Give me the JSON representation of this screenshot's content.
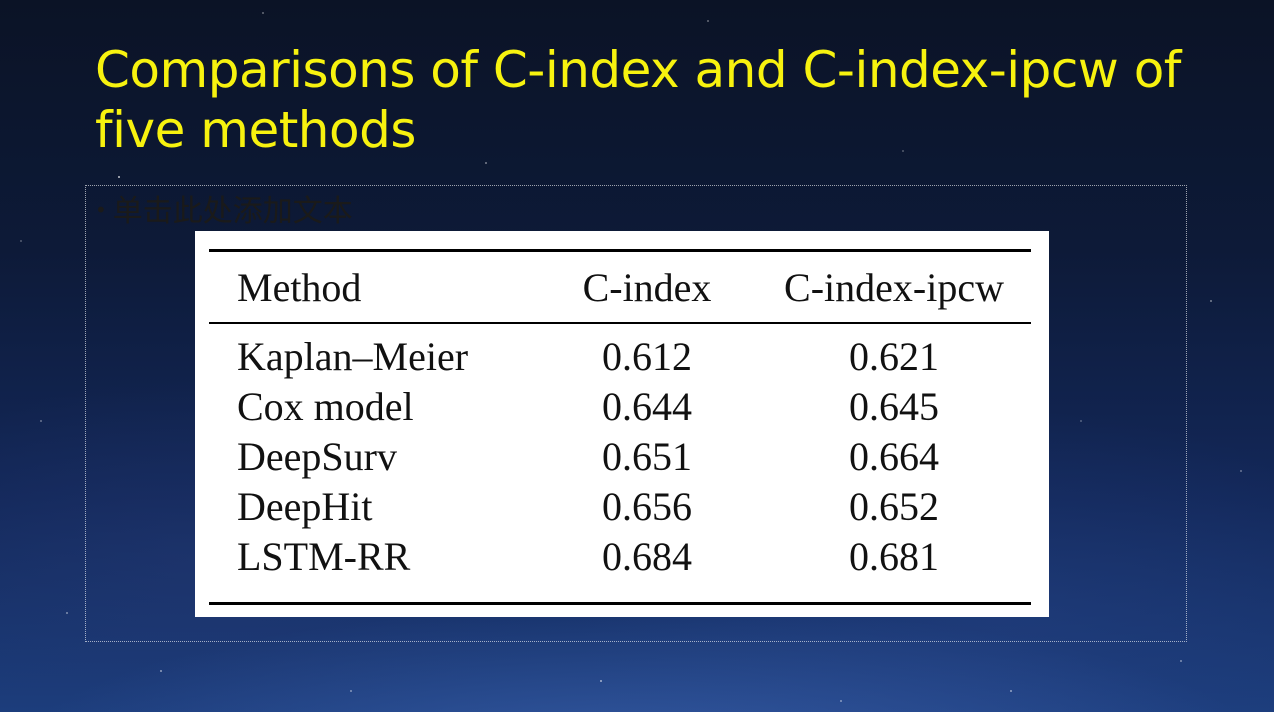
{
  "slide": {
    "title": "Comparisons of C-index and C-index-ipcw of five methods",
    "placeholder_text": "单击此处添加文本",
    "bullet": "•"
  },
  "table": {
    "headers": [
      "Method",
      "C-index",
      "C-index-ipcw"
    ],
    "rows": [
      [
        "Kaplan–Meier",
        "0.612",
        "0.621"
      ],
      [
        "Cox model",
        "0.644",
        "0.645"
      ],
      [
        "DeepSurv",
        "0.651",
        "0.664"
      ],
      [
        "DeepHit",
        "0.656",
        "0.652"
      ],
      [
        "LSTM-RR",
        "0.684",
        "0.681"
      ]
    ]
  },
  "colors": {
    "title": "#f7f20f",
    "background_top": "#0b1326",
    "background_bottom": "#1c3d7c"
  }
}
